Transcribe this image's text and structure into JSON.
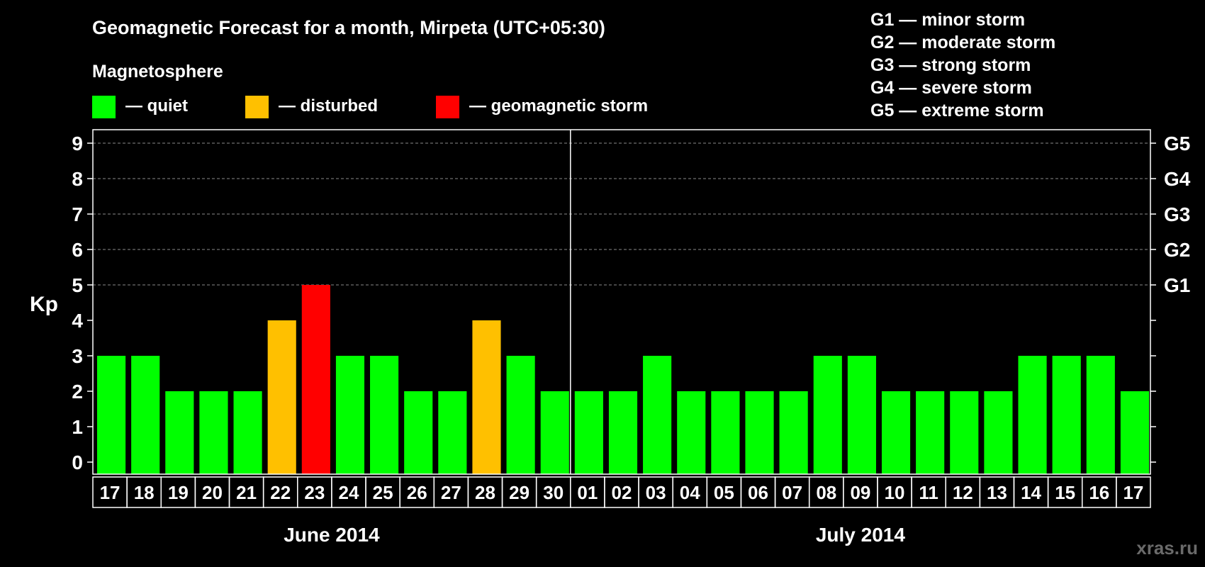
{
  "chart_data": {
    "type": "bar",
    "title": "Geomagnetic Forecast for a month, Mirpeta (UTC+05:30)",
    "legend_title": "Magnetosphere",
    "legend": [
      {
        "label": "— quiet",
        "color": "#00ff00"
      },
      {
        "label": "— disturbed",
        "color": "#ffc000"
      },
      {
        "label": "— geomagnetic storm",
        "color": "#ff0000"
      }
    ],
    "storm_scale": [
      "G1 — minor storm",
      "G2 — moderate storm",
      "G3 — strong storm",
      "G4 — severe storm",
      "G5 — extreme storm"
    ],
    "ylabel": "Kp",
    "ylim": [
      0,
      9
    ],
    "y_ticks": [
      0,
      1,
      2,
      3,
      4,
      5,
      6,
      7,
      8,
      9
    ],
    "right_ticks": [
      {
        "y": 5,
        "label": "G1"
      },
      {
        "y": 6,
        "label": "G2"
      },
      {
        "y": 7,
        "label": "G3"
      },
      {
        "y": 8,
        "label": "G4"
      },
      {
        "y": 9,
        "label": "G5"
      }
    ],
    "months": [
      {
        "label": "June 2014",
        "days": [
          "17",
          "18",
          "19",
          "20",
          "21",
          "22",
          "23",
          "24",
          "25",
          "26",
          "27",
          "28",
          "29",
          "30"
        ]
      },
      {
        "label": "July 2014",
        "days": [
          "01",
          "02",
          "03",
          "04",
          "05",
          "06",
          "07",
          "08",
          "09",
          "10",
          "11",
          "12",
          "13",
          "14",
          "15",
          "16",
          "17"
        ]
      }
    ],
    "values": [
      3,
      3,
      2,
      2,
      2,
      4,
      5,
      3,
      3,
      2,
      2,
      4,
      3,
      2,
      2,
      2,
      3,
      2,
      2,
      2,
      2,
      3,
      3,
      2,
      2,
      2,
      2,
      3,
      3,
      3,
      2
    ],
    "colors": {
      "quiet": "#00ff00",
      "disturbed": "#ffc000",
      "storm": "#ff0000"
    },
    "grid": "dashed at each integer Kp from 5 to 9"
  },
  "watermark": "xras.ru"
}
